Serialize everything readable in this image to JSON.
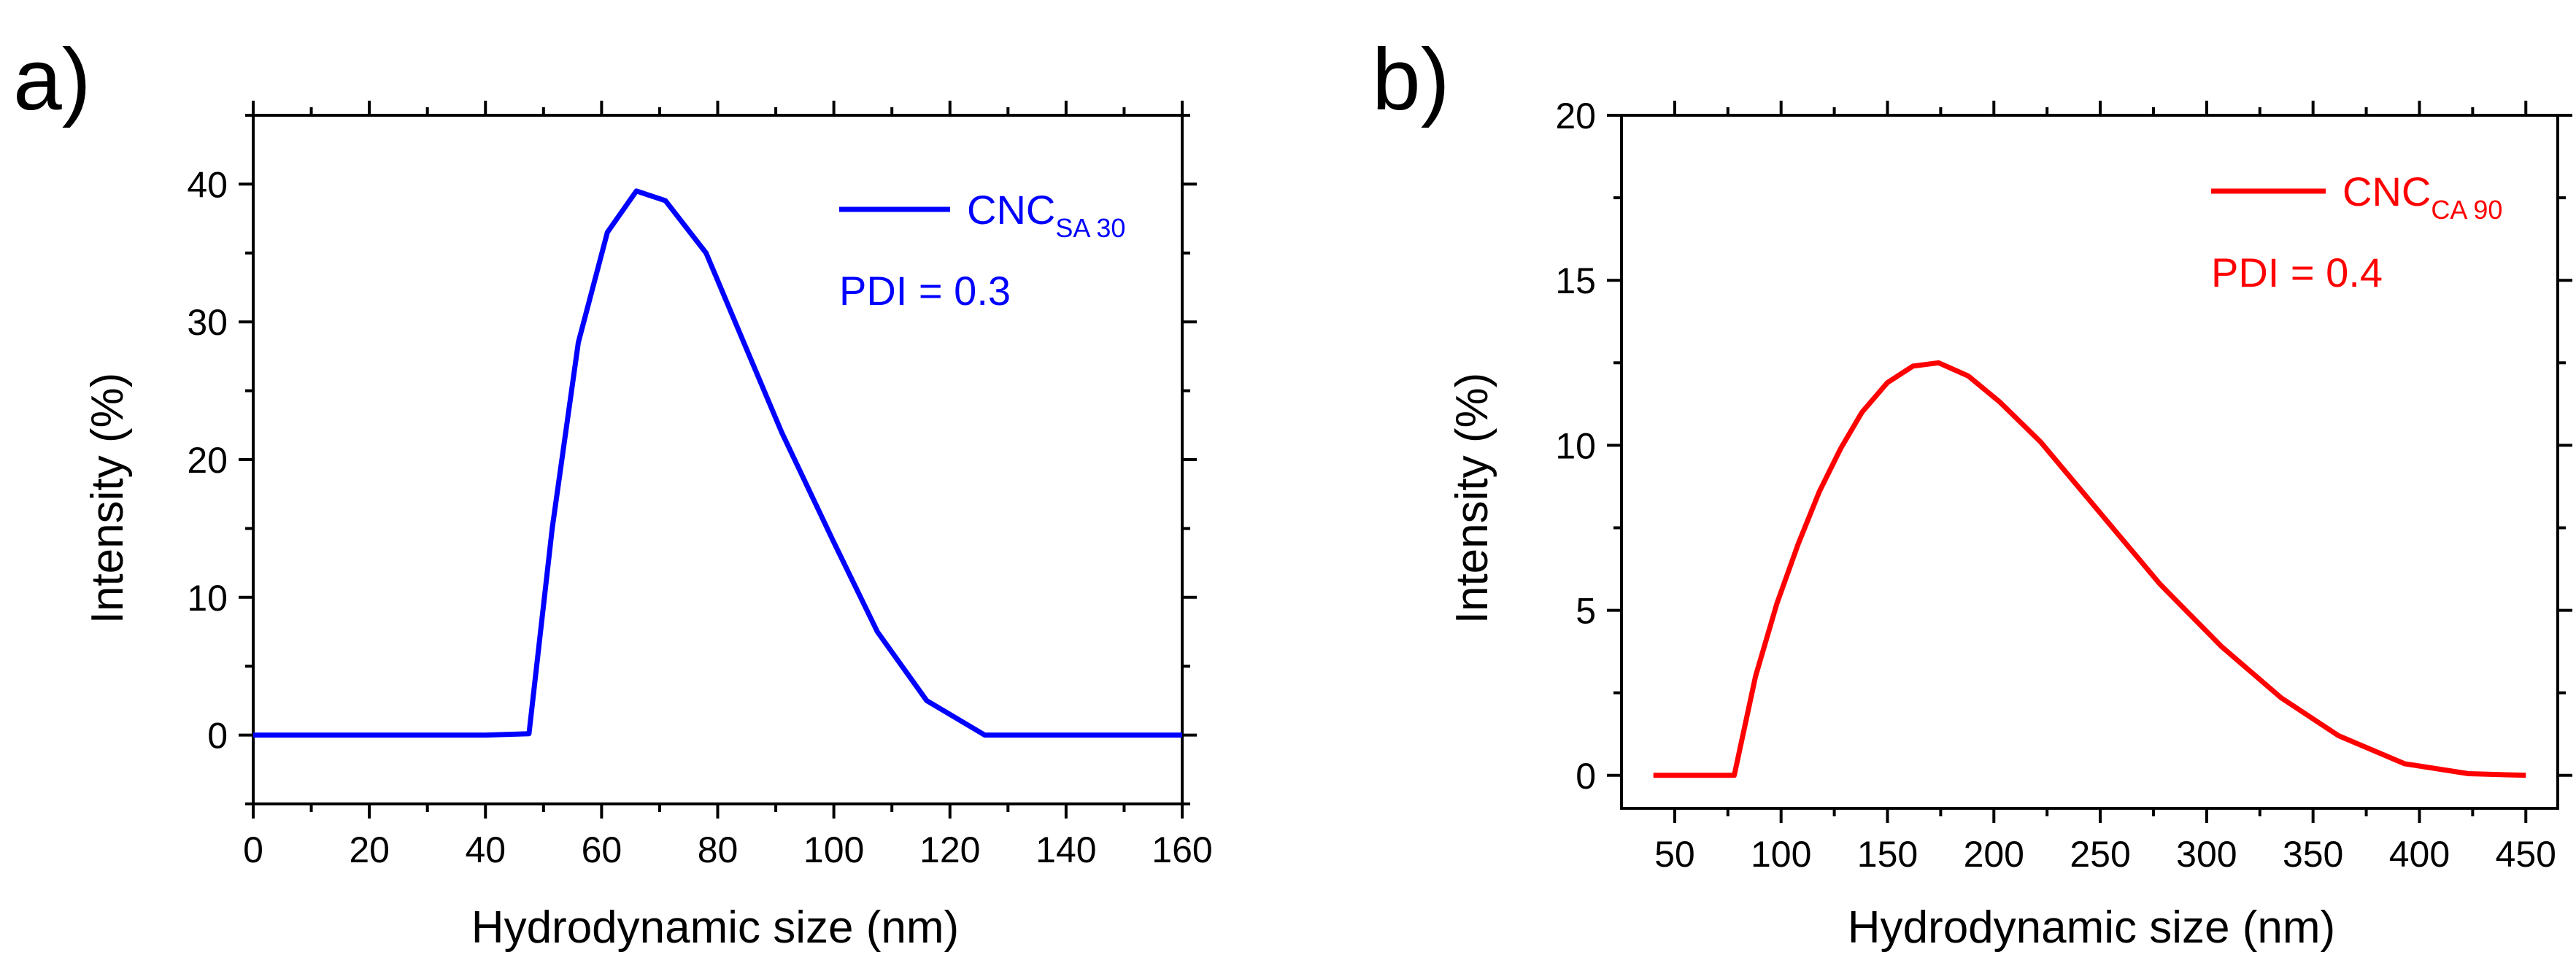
{
  "figure": {
    "panels": [
      "a)",
      "b)"
    ]
  },
  "chart_data": [
    {
      "type": "line",
      "panel": "a)",
      "xlabel": "Hydrodynamic size (nm)",
      "ylabel": "Intensity (%)",
      "xlim": [
        0,
        160
      ],
      "ylim": [
        -5,
        45
      ],
      "xticks": [
        0,
        20,
        40,
        60,
        80,
        100,
        120,
        140,
        160
      ],
      "yticks": [
        0,
        10,
        20,
        30,
        40
      ],
      "color": "#0000ff",
      "legend": {
        "name": "CNC",
        "sub": "SA 30",
        "note": "PDI = 0.3"
      },
      "series": [
        {
          "name": "CNC SA 30",
          "x": [
            0,
            20,
            40,
            47.5,
            51.5,
            56,
            61,
            66,
            71,
            78,
            84,
            91,
            100,
            107.5,
            116,
            126,
            140,
            160
          ],
          "y": [
            0,
            0,
            0,
            0.1,
            15,
            28.5,
            36.5,
            39.5,
            38.8,
            35,
            29,
            22,
            14,
            7.5,
            2.5,
            0,
            0,
            0
          ]
        }
      ]
    },
    {
      "type": "line",
      "panel": "b)",
      "xlabel": "Hydrodynamic size (nm)",
      "ylabel": "Intensity (%)",
      "xlim": [
        25,
        465
      ],
      "ylim": [
        -1,
        20
      ],
      "xticks": [
        50,
        100,
        150,
        200,
        250,
        300,
        350,
        400,
        450
      ],
      "yticks": [
        0,
        5,
        10,
        15,
        20
      ],
      "color": "#ff0000",
      "legend": {
        "name": "CNC",
        "sub": "CA 90",
        "note": "PDI = 0.4"
      },
      "series": [
        {
          "name": "CNC CA 90",
          "x": [
            40,
            78,
            88,
            98,
            108,
            118,
            128,
            138,
            150,
            162,
            174,
            188,
            203,
            222,
            248,
            278,
            307,
            335,
            362,
            393,
            423,
            450
          ],
          "y": [
            0,
            0,
            3,
            5.2,
            7,
            8.6,
            9.9,
            11,
            11.9,
            12.4,
            12.5,
            12.1,
            11.3,
            10.1,
            8.1,
            5.8,
            3.9,
            2.35,
            1.2,
            0.35,
            0.05,
            0
          ]
        }
      ]
    }
  ]
}
